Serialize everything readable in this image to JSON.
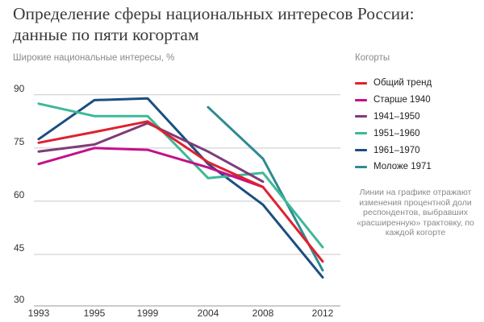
{
  "title_lines": [
    "Определение сферы национальных интересов России:",
    "данные по пяти когортам"
  ],
  "legend_title": "Когорты",
  "note": "Линии на графике отражают изменения процентной доли респондентов, выбравших «расши­ренную» трактовку, по каждой когорте",
  "chart_data": {
    "type": "line",
    "title": "Определение сферы национальных интересов России: данные по пяти когортам",
    "ylabel": "Широкие национальные интересы, %",
    "xlabel": "",
    "x": [
      "1993",
      "1995",
      "1999",
      "2004",
      "2008",
      "2012"
    ],
    "yticks": [
      30,
      45,
      60,
      75,
      90
    ],
    "ylim": [
      30,
      92
    ],
    "grid": "horizontal",
    "legend_position": "right",
    "series": [
      {
        "name": "Общий тренд",
        "color": "#e0202f",
        "values": [
          76.5,
          79.5,
          82.5,
          71,
          64,
          43
        ]
      },
      {
        "name": "Старше 1940",
        "color": "#c4108c",
        "values": [
          70.5,
          75,
          74.5,
          69.5,
          64,
          null
        ]
      },
      {
        "name": "1941–1950",
        "color": "#7e3c79",
        "values": [
          74,
          76,
          82,
          74,
          65.5,
          null
        ]
      },
      {
        "name": "1951–1960",
        "color": "#3db898",
        "values": [
          87.5,
          84,
          84,
          66.5,
          68,
          47
        ]
      },
      {
        "name": "1961–1970",
        "color": "#1b4f80",
        "values": [
          77.5,
          88.5,
          89,
          70.5,
          59,
          38.5
        ]
      },
      {
        "name": "Моложе 1971",
        "color": "#2f8a91",
        "values": [
          null,
          null,
          null,
          86.5,
          72,
          40.5
        ]
      }
    ]
  }
}
